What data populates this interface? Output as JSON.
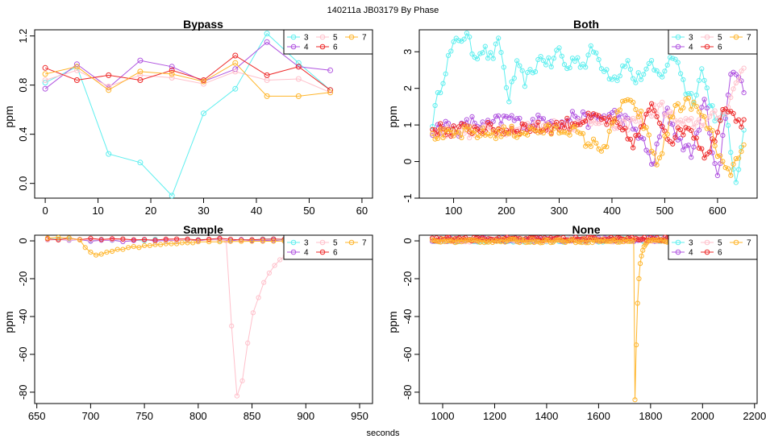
{
  "title": "140211a    JB03179    By Phase",
  "xlabel": "seconds",
  "colors": {
    "3": "#5fefef",
    "4": "#b054e0",
    "5": "#ffc0cb",
    "6": "#ee2a2a",
    "7": "#ffb52a"
  },
  "legend_labels": [
    "3",
    "4",
    "5",
    "6",
    "7"
  ],
  "chart_data": [
    {
      "type": "line",
      "title": "Bypass",
      "ylabel": "ppm",
      "xlim": [
        -2,
        62
      ],
      "ylim": [
        -0.12,
        1.25
      ],
      "xticks": [
        0,
        10,
        20,
        30,
        40,
        50,
        60
      ],
      "yticks": [
        0.0,
        0.4,
        0.8,
        1.2
      ],
      "ytick_labels": [
        "0.0",
        "0.4",
        "0.8",
        "1.2"
      ],
      "legend": "top-right",
      "series": [
        {
          "name": "3",
          "x": [
            0,
            6,
            12,
            18,
            24,
            30,
            36,
            42,
            48,
            54
          ],
          "y": [
            0.82,
            0.95,
            0.24,
            0.17,
            -0.1,
            0.57,
            0.77,
            1.22,
            0.98,
            0.76
          ]
        },
        {
          "name": "4",
          "x": [
            0,
            6,
            12,
            18,
            24,
            30,
            36,
            42,
            48,
            54
          ],
          "y": [
            0.77,
            0.97,
            0.78,
            1.0,
            0.95,
            0.83,
            0.93,
            1.15,
            0.95,
            0.92
          ]
        },
        {
          "name": "5",
          "x": [
            0,
            6,
            12,
            18,
            24,
            30,
            36,
            42,
            48,
            54
          ],
          "y": [
            0.84,
            0.92,
            0.79,
            0.88,
            0.86,
            0.81,
            0.91,
            0.84,
            0.85,
            0.74
          ]
        },
        {
          "name": "6",
          "x": [
            0,
            6,
            12,
            18,
            24,
            30,
            36,
            42,
            48,
            54
          ],
          "y": [
            0.94,
            0.84,
            0.88,
            0.84,
            0.92,
            0.84,
            1.04,
            0.88,
            0.95,
            0.76
          ]
        },
        {
          "name": "7",
          "x": [
            0,
            6,
            12,
            18,
            24,
            30,
            36,
            42,
            48,
            54
          ],
          "y": [
            0.89,
            0.95,
            0.76,
            0.91,
            0.89,
            0.83,
            0.98,
            0.71,
            0.71,
            0.74
          ]
        }
      ]
    },
    {
      "type": "line",
      "title": "Both",
      "ylabel": "ppm",
      "xlim": [
        35,
        675
      ],
      "ylim": [
        -1.0,
        3.6
      ],
      "xticks": [
        100,
        200,
        300,
        400,
        500,
        600
      ],
      "yticks": [
        -1,
        0,
        1,
        2,
        3
      ],
      "ytick_labels": [
        "-1",
        "0",
        "1",
        "2",
        "3"
      ],
      "legend": "top-right",
      "generated": "~120 points per series from x=60 to 654, step 5; values summarised by levels",
      "series": [
        {
          "name": "3",
          "x_range": [
            60,
            654
          ],
          "y_levels": [
            1.1,
            2.1,
            2.9,
            3.35,
            3.45,
            2.9,
            3.1,
            2.8,
            3.3,
            1.65,
            2.6,
            2.2,
            2.5,
            2.9,
            2.6,
            3.1,
            2.5,
            2.9,
            2.6,
            3.1,
            2.7,
            2.4,
            2.3,
            2.8,
            2.2,
            2.4,
            2.6,
            2.3,
            2.7,
            2.9,
            2.0,
            1.7,
            2.5,
            1.6,
            1.0,
            1.3,
            -0.85,
            1.0
          ]
        },
        {
          "name": "4",
          "x_range": [
            60,
            654
          ],
          "y_levels": [
            0.85,
            1.0,
            0.85,
            1.1,
            0.95,
            1.1,
            1.2,
            1.0,
            1.1,
            1.2,
            1.0,
            1.3,
            1.1,
            1.2,
            1.3,
            1.1,
            0.7,
            -0.1,
            1.4,
            0.6,
            0.2,
            1.7,
            -0.6,
            2.6,
            2.0
          ]
        },
        {
          "name": "5",
          "x_range": [
            60,
            654
          ],
          "y_levels": [
            0.8,
            0.85,
            0.8,
            0.9,
            0.9,
            0.95,
            1.0,
            1.0,
            1.2,
            0.9,
            1.2,
            1.5,
            1.0,
            1.1,
            1.3,
            2.6
          ]
        },
        {
          "name": "6",
          "x_range": [
            60,
            654
          ],
          "y_levels": [
            0.9,
            0.85,
            0.9,
            0.9,
            0.85,
            0.95,
            0.9,
            1.0,
            1.1,
            1.2,
            1.0,
            0.5,
            1.5,
            0.6,
            1.0,
            0.1,
            1.6,
            1.0
          ]
        },
        {
          "name": "7",
          "x_range": [
            60,
            654
          ],
          "y_levels": [
            0.75,
            0.7,
            0.8,
            0.75,
            0.8,
            0.8,
            0.85,
            0.85,
            0.9,
            0.5,
            0.4,
            1.7,
            1.3,
            -0.1,
            1.5,
            1.6,
            0.9,
            -0.4,
            0.3
          ]
        }
      ]
    },
    {
      "type": "line",
      "title": "Sample",
      "ylabel": "ppm",
      "xlim": [
        648,
        962
      ],
      "ylim": [
        -86,
        3
      ],
      "xticks": [
        650,
        700,
        750,
        800,
        850,
        900,
        950
      ],
      "yticks": [
        0,
        -20,
        -40,
        -60,
        -80
      ],
      "ytick_labels": [
        "0",
        "-20",
        "-40",
        "-60",
        "-80"
      ],
      "legend": "top-right",
      "series": [
        {
          "name": "3",
          "x_range": [
            660,
            930
          ],
          "y_level": 0.5
        },
        {
          "name": "4",
          "x_range": [
            660,
            930
          ],
          "y_level": 0.2
        },
        {
          "name": "5",
          "x": [
            660,
            670,
            680,
            690,
            700,
            710,
            720,
            730,
            740,
            750,
            760,
            770,
            780,
            790,
            800,
            810,
            820,
            826,
            831,
            836,
            841,
            846,
            851,
            856,
            861,
            866,
            871,
            876,
            881,
            886,
            891,
            896,
            901,
            910,
            920,
            930
          ],
          "y": [
            0.5,
            0.7,
            0.6,
            0.8,
            0.5,
            0.6,
            0.7,
            0.5,
            0.6,
            0.4,
            0.5,
            0.6,
            0.4,
            0.5,
            0.6,
            0.4,
            0.5,
            0.0,
            -45,
            -82,
            -74,
            -54,
            -38,
            -30,
            -22,
            -17,
            -13,
            -10,
            -8,
            -6,
            -4,
            -3,
            -2,
            -1,
            -0.5,
            -0.3
          ]
        },
        {
          "name": "6",
          "x_range": [
            660,
            930
          ],
          "y_level": 1.0
        },
        {
          "name": "7",
          "x": [
            660,
            670,
            680,
            690,
            695,
            700,
            705,
            710,
            715,
            720,
            725,
            730,
            735,
            740,
            745,
            750,
            755,
            760,
            765,
            770,
            775,
            780,
            785,
            790,
            795,
            800,
            810,
            820,
            830,
            840,
            850,
            860,
            870,
            880,
            890,
            900,
            910,
            920,
            930
          ],
          "y": [
            1.5,
            1.8,
            1.5,
            0.5,
            -3.5,
            -6.0,
            -7.5,
            -7.0,
            -6.0,
            -5.5,
            -4.5,
            -4.5,
            -3.5,
            -3.0,
            -3.5,
            -2.5,
            -2.5,
            -2.0,
            -2.0,
            -1.5,
            -1.5,
            -1.5,
            -1.0,
            -1.0,
            -1.0,
            -0.5,
            -0.5,
            -0.5,
            -0.3,
            -0.3,
            -0.2,
            -0.2,
            -0.2,
            -0.1,
            -0.1,
            0.0,
            0.0,
            0.0,
            0.0
          ]
        }
      ]
    },
    {
      "type": "line",
      "title": "None",
      "ylabel": "ppm",
      "xlim": [
        910,
        2210
      ],
      "ylim": [
        -86,
        3
      ],
      "xticks": [
        1000,
        1200,
        1400,
        1600,
        1800,
        2000,
        2200
      ],
      "yticks": [
        0,
        -20,
        -40,
        -60,
        -80
      ],
      "ytick_labels": [
        "0",
        "-20",
        "-40",
        "-60",
        "-80"
      ],
      "legend": "top-right",
      "series": [
        {
          "name": "3",
          "x_range": [
            960,
            2140
          ],
          "y_level": 0.3
        },
        {
          "name": "4",
          "x_range": [
            960,
            2140
          ],
          "y_level": 0.6
        },
        {
          "name": "5",
          "x_range": [
            960,
            2140
          ],
          "y_level": 0.4
        },
        {
          "name": "6",
          "x_range": [
            960,
            2140
          ],
          "y_level": 0.9
        },
        {
          "name": "7",
          "x": [
            1735,
            1740,
            1745,
            1750,
            1755,
            1760,
            1765,
            1770,
            1775,
            1780,
            1785
          ],
          "y": [
            0.5,
            -84,
            -55,
            -33,
            -20,
            -12,
            -8,
            -5,
            -3,
            -2,
            -1
          ],
          "base_range": [
            960,
            2140
          ],
          "base_level": 0.0
        }
      ]
    }
  ]
}
